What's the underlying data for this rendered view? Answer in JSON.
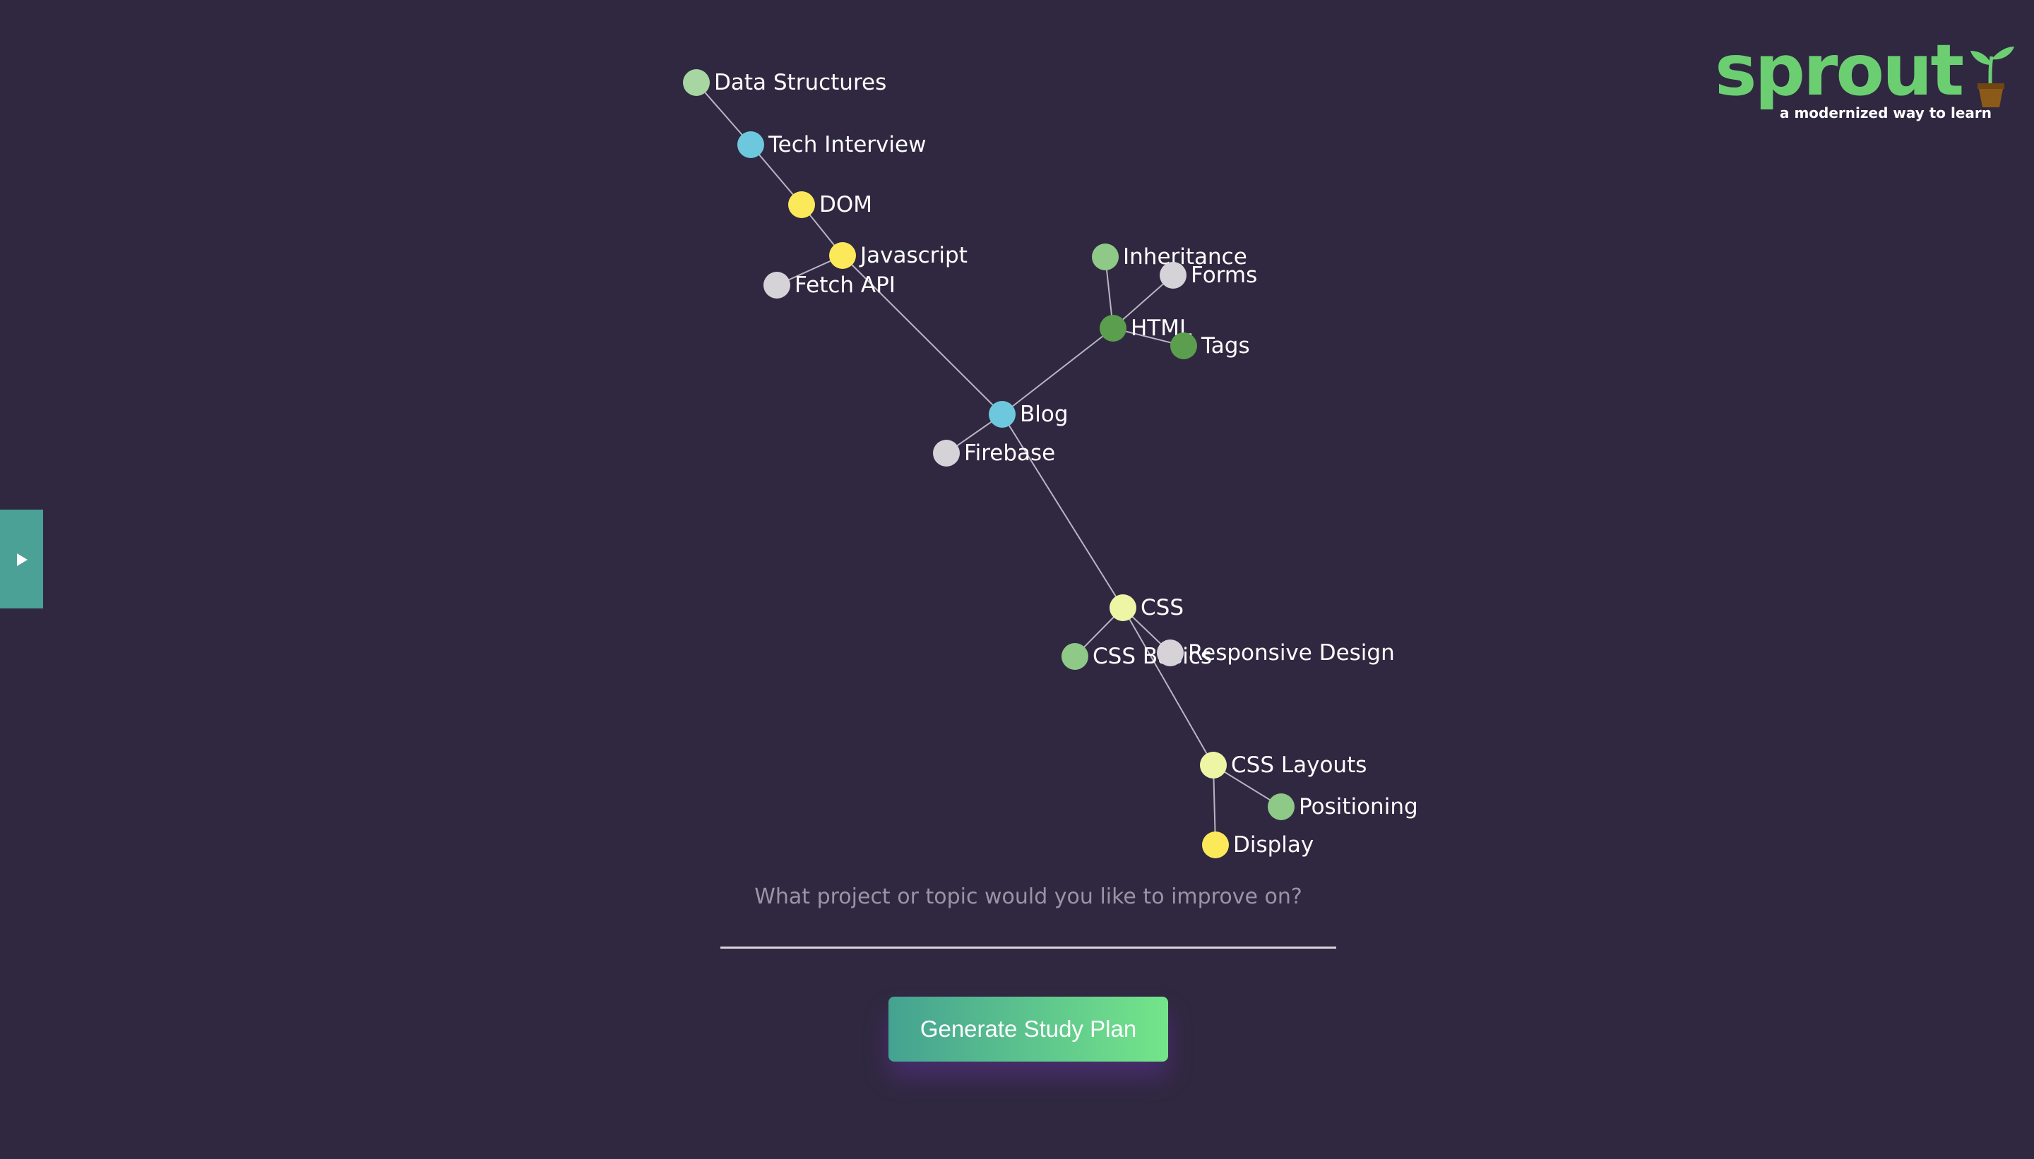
{
  "colors": {
    "background": "#302840",
    "brand_green": "#6bcf72",
    "pot_brown": "#8b5a18",
    "edge": "#b9b5c4",
    "button_gradient_start": "#44a291",
    "button_gradient_end": "#74e58a",
    "side_toggle": "#4ba195"
  },
  "logo": {
    "wordmark": "sprout",
    "tagline": "a modernized way to learn",
    "icon": "sprout-pot-icon"
  },
  "side_panel_toggle": {
    "icon": "play-icon"
  },
  "study_graph": {
    "nodes": [
      {
        "id": "data-structures",
        "label": "Data Structures",
        "color": "#a7d6a2"
      },
      {
        "id": "tech-interview",
        "label": "Tech Interview",
        "color": "#6ec8dd"
      },
      {
        "id": "dom",
        "label": "DOM",
        "color": "#fbe95a"
      },
      {
        "id": "javascript",
        "label": "Javascript",
        "color": "#fbe95a"
      },
      {
        "id": "fetch-api",
        "label": "Fetch API",
        "color": "#d5d3d8"
      },
      {
        "id": "inheritance",
        "label": "Inheritance",
        "color": "#8fc987"
      },
      {
        "id": "forms",
        "label": "Forms",
        "color": "#d5d3d8"
      },
      {
        "id": "html",
        "label": "HTML",
        "color": "#5a9e4e"
      },
      {
        "id": "tags",
        "label": "Tags",
        "color": "#5a9e4e"
      },
      {
        "id": "blog",
        "label": "Blog",
        "color": "#6ec8dd"
      },
      {
        "id": "firebase",
        "label": "Firebase",
        "color": "#d5d3d8"
      },
      {
        "id": "css",
        "label": "CSS",
        "color": "#eef6a6"
      },
      {
        "id": "css-basics",
        "label": "CSS Basics",
        "color": "#8fc987"
      },
      {
        "id": "responsive-design",
        "label": "Responsive Design",
        "color": "#d5d3d8"
      },
      {
        "id": "css-layouts",
        "label": "CSS Layouts",
        "color": "#eef6a6"
      },
      {
        "id": "positioning",
        "label": "Positioning",
        "color": "#8fc987"
      },
      {
        "id": "display",
        "label": "Display",
        "color": "#fbe95a"
      }
    ],
    "edges": [
      [
        "data-structures",
        "tech-interview"
      ],
      [
        "tech-interview",
        "dom"
      ],
      [
        "dom",
        "javascript"
      ],
      [
        "javascript",
        "fetch-api"
      ],
      [
        "javascript",
        "blog"
      ],
      [
        "blog",
        "html"
      ],
      [
        "html",
        "inheritance"
      ],
      [
        "html",
        "forms"
      ],
      [
        "html",
        "tags"
      ],
      [
        "blog",
        "firebase"
      ],
      [
        "blog",
        "css"
      ],
      [
        "css",
        "css-basics"
      ],
      [
        "css",
        "responsive-design"
      ],
      [
        "css",
        "css-layouts"
      ],
      [
        "css-layouts",
        "positioning"
      ],
      [
        "css-layouts",
        "display"
      ]
    ]
  },
  "topic_input": {
    "placeholder": "What project or topic would you like to improve on?",
    "value": ""
  },
  "generate_button": {
    "label": "Generate Study Plan"
  }
}
